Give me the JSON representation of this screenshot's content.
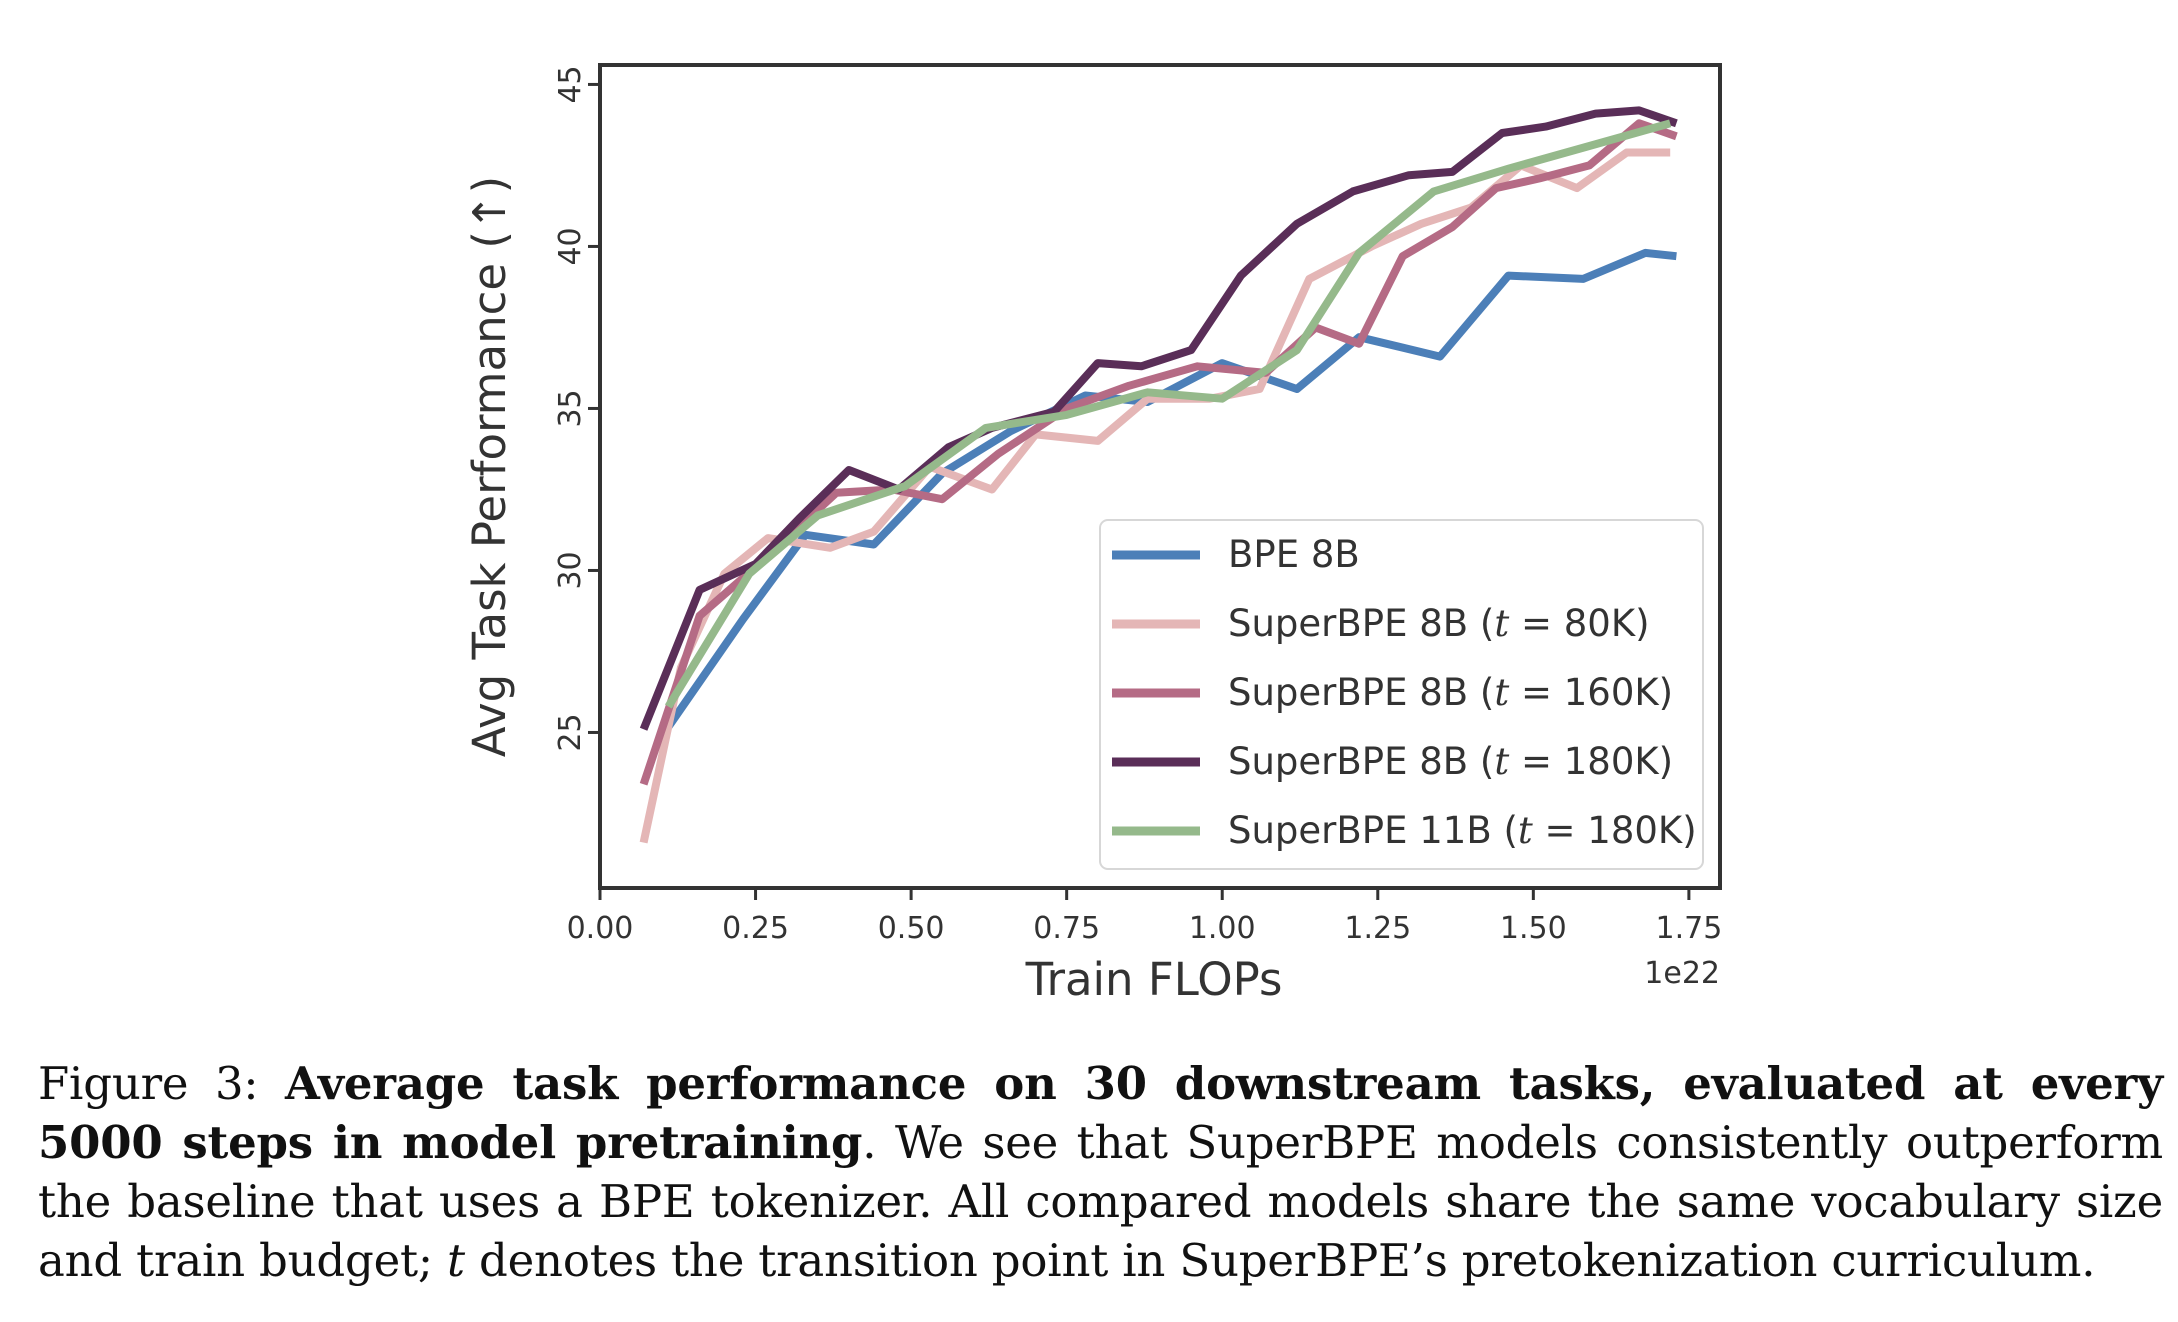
{
  "chart_data": {
    "type": "line",
    "xlabel": "Train FLOPs",
    "ylabel": "Avg Task Performance (↑)",
    "x_offset_label": "1e22",
    "xlim": [
      0.0,
      1.8
    ],
    "ylim": [
      20.2,
      45.6
    ],
    "xticks": [
      0.0,
      0.25,
      0.5,
      0.75,
      1.0,
      1.25,
      1.5,
      1.75
    ],
    "xtick_labels": [
      "0.00",
      "0.25",
      "0.50",
      "0.75",
      "1.00",
      "1.25",
      "1.50",
      "1.75"
    ],
    "yticks": [
      25,
      30,
      35,
      40,
      45
    ],
    "ytick_labels": [
      "25",
      "30",
      "35",
      "40",
      "45"
    ],
    "grid": false,
    "legend_position": "lower-right",
    "series": [
      {
        "name": "BPE 8B",
        "legend_prefix": "BPE 8B",
        "legend_t": "",
        "legend_suffix": "",
        "color": "#4c7fb8",
        "x": [
          0.1,
          0.23,
          0.33,
          0.44,
          0.55,
          0.66,
          0.78,
          0.88,
          1.0,
          1.12,
          1.22,
          1.35,
          1.46,
          1.58,
          1.68,
          1.73
        ],
        "y": [
          24.9,
          28.5,
          31.1,
          30.8,
          33.0,
          34.3,
          35.4,
          35.2,
          36.4,
          35.6,
          37.2,
          36.6,
          39.1,
          39.0,
          39.8,
          39.7
        ]
      },
      {
        "name": "SuperBPE 8B (t = 80K)",
        "legend_prefix": "SuperBPE 8B (",
        "legend_t": "t",
        "legend_suffix": " = 80K)",
        "color": "#e4b6b6",
        "x": [
          0.07,
          0.13,
          0.2,
          0.27,
          0.37,
          0.44,
          0.53,
          0.63,
          0.7,
          0.8,
          0.88,
          0.98,
          1.06,
          1.14,
          1.24,
          1.32,
          1.4,
          1.48,
          1.57,
          1.65,
          1.72
        ],
        "y": [
          21.6,
          27.0,
          29.9,
          31.0,
          30.7,
          31.2,
          33.2,
          32.5,
          34.2,
          34.0,
          35.3,
          35.3,
          35.6,
          39.0,
          40.0,
          40.7,
          41.2,
          42.5,
          41.8,
          42.9,
          42.9
        ]
      },
      {
        "name": "SuperBPE 8B (t = 160K)",
        "legend_prefix": "SuperBPE 8B (",
        "legend_t": "t",
        "legend_suffix": " = 160K)",
        "color": "#b56b85",
        "x": [
          0.07,
          0.16,
          0.25,
          0.38,
          0.47,
          0.55,
          0.64,
          0.75,
          0.85,
          0.96,
          1.07,
          1.15,
          1.22,
          1.29,
          1.37,
          1.44,
          1.51,
          1.59,
          1.67,
          1.73
        ],
        "y": [
          23.4,
          28.6,
          30.1,
          32.4,
          32.5,
          32.2,
          33.6,
          35.0,
          35.7,
          36.3,
          36.1,
          37.5,
          37.0,
          39.7,
          40.6,
          41.8,
          42.1,
          42.5,
          43.8,
          43.4
        ]
      },
      {
        "name": "SuperBPE 8B (t = 180K)",
        "legend_prefix": "SuperBPE 8B (",
        "legend_t": "t",
        "legend_suffix": " = 180K)",
        "color": "#5a2e58",
        "x": [
          0.07,
          0.16,
          0.25,
          0.32,
          0.4,
          0.48,
          0.56,
          0.63,
          0.73,
          0.8,
          0.87,
          0.95,
          1.03,
          1.12,
          1.21,
          1.3,
          1.37,
          1.45,
          1.52,
          1.6,
          1.67,
          1.73
        ],
        "y": [
          25.1,
          29.4,
          30.2,
          31.6,
          33.1,
          32.5,
          33.8,
          34.4,
          34.9,
          36.4,
          36.3,
          36.8,
          39.1,
          40.7,
          41.7,
          42.2,
          42.3,
          43.5,
          43.7,
          44.1,
          44.2,
          43.8
        ]
      },
      {
        "name": "SuperBPE 11B (t = 180K)",
        "legend_prefix": "SuperBPE 11B (",
        "legend_t": "t",
        "legend_suffix": " = 180K)",
        "color": "#95b98b",
        "x": [
          0.11,
          0.24,
          0.35,
          0.49,
          0.62,
          0.75,
          0.88,
          1.0,
          1.12,
          1.22,
          1.34,
          1.46,
          1.59,
          1.72
        ],
        "y": [
          25.8,
          29.9,
          31.7,
          32.6,
          34.4,
          34.8,
          35.5,
          35.3,
          36.8,
          39.8,
          41.7,
          42.4,
          43.1,
          43.8
        ]
      }
    ]
  },
  "caption": {
    "label": "Figure 3: ",
    "bold_text": "Average task performance on 30 downstream tasks, evaluated at every 5000 steps in model pretraining",
    "text_1": ". We see that SuperBPE models consistently outperform the baseline that uses a BPE tokenizer. All compared models share the same vocabulary size and train budget; ",
    "italic_t": "t",
    "text_2": " denotes the transition point in SuperBPE’s pretokenization curriculum."
  }
}
